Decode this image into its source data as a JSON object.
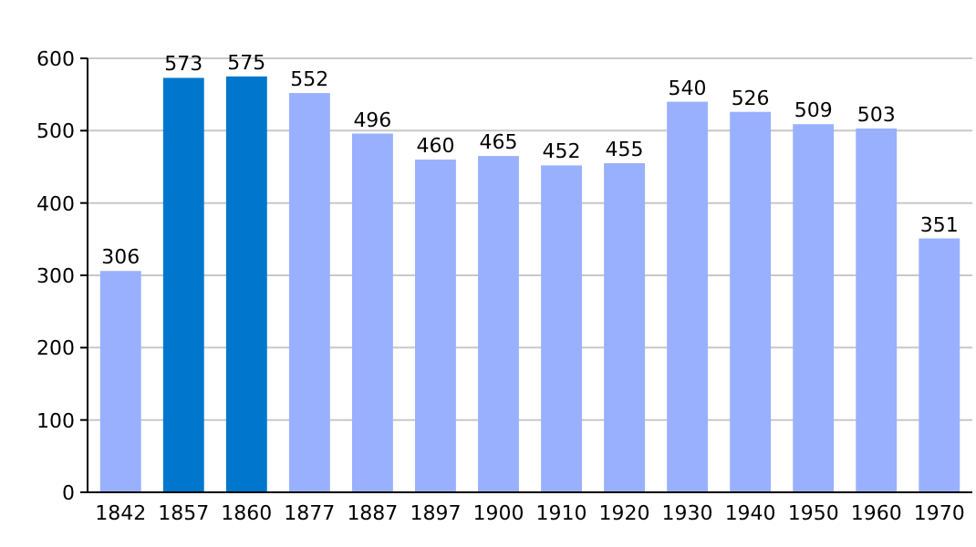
{
  "chart_data": {
    "type": "bar",
    "categories": [
      "1842",
      "1857",
      "1860",
      "1877",
      "1887",
      "1897",
      "1900",
      "1910",
      "1920",
      "1930",
      "1940",
      "1950",
      "1960",
      "1970"
    ],
    "values": [
      306,
      573,
      575,
      552,
      496,
      460,
      465,
      452,
      455,
      540,
      526,
      509,
      503,
      351
    ],
    "colors": [
      "#99b0ff",
      "#0077cc",
      "#0077cc",
      "#99b0ff",
      "#99b0ff",
      "#99b0ff",
      "#99b0ff",
      "#99b0ff",
      "#99b0ff",
      "#99b0ff",
      "#99b0ff",
      "#99b0ff",
      "#99b0ff",
      "#99b0ff"
    ],
    "ylim": [
      0,
      600
    ],
    "yticks": [
      0,
      100,
      200,
      300,
      400,
      500,
      600
    ],
    "grid": "y",
    "data_labels": true
  }
}
